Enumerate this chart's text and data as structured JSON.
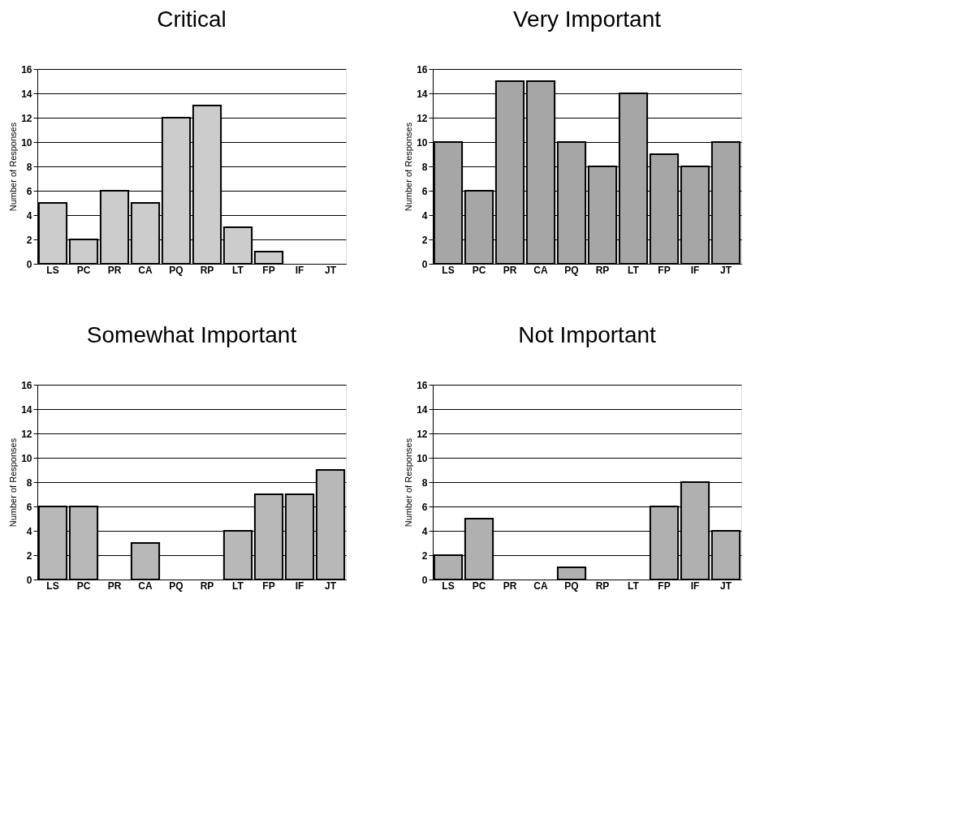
{
  "chart_data": [
    {
      "type": "bar",
      "title": "Critical",
      "ylabel": "Number of Responses",
      "categories": [
        "LS",
        "PC",
        "PR",
        "CA",
        "PQ",
        "RP",
        "LT",
        "FP",
        "IF",
        "JT"
      ],
      "values": [
        5,
        2,
        6,
        5,
        12,
        13,
        3,
        1,
        0,
        0
      ],
      "color": "#cccccc",
      "ylim": [
        0,
        16
      ],
      "yticks": [
        0,
        2,
        4,
        6,
        8,
        10,
        12,
        14,
        16
      ],
      "grid": "y"
    },
    {
      "type": "bar",
      "title": "Very Important",
      "ylabel": "Number of Responses",
      "categories": [
        "LS",
        "PC",
        "PR",
        "CA",
        "PQ",
        "RP",
        "LT",
        "FP",
        "IF",
        "JT"
      ],
      "values": [
        10,
        6,
        15,
        15,
        10,
        8,
        14,
        9,
        8,
        10
      ],
      "color": "#a6a6a6",
      "ylim": [
        0,
        16
      ],
      "yticks": [
        0,
        2,
        4,
        6,
        8,
        10,
        12,
        14,
        16
      ],
      "grid": "y"
    },
    {
      "type": "bar",
      "title": "Somewhat Important",
      "ylabel": "Number of Responses",
      "categories": [
        "LS",
        "PC",
        "PR",
        "CA",
        "PQ",
        "RP",
        "LT",
        "FP",
        "IF",
        "JT"
      ],
      "values": [
        6,
        6,
        0,
        3,
        0,
        0,
        4,
        7,
        7,
        9
      ],
      "color": "#b8b8b8",
      "ylim": [
        0,
        16
      ],
      "yticks": [
        0,
        2,
        4,
        6,
        8,
        10,
        12,
        14,
        16
      ],
      "grid": "y"
    },
    {
      "type": "bar",
      "title": "Not Important",
      "ylabel": "Number of Responses",
      "categories": [
        "LS",
        "PC",
        "PR",
        "CA",
        "PQ",
        "RP",
        "LT",
        "FP",
        "IF",
        "JT"
      ],
      "values": [
        2,
        5,
        0,
        0,
        1,
        0,
        0,
        6,
        8,
        4
      ],
      "color": "#b0b0b0",
      "ylim": [
        0,
        16
      ],
      "yticks": [
        0,
        2,
        4,
        6,
        8,
        10,
        12,
        14,
        16
      ],
      "grid": "y"
    }
  ]
}
